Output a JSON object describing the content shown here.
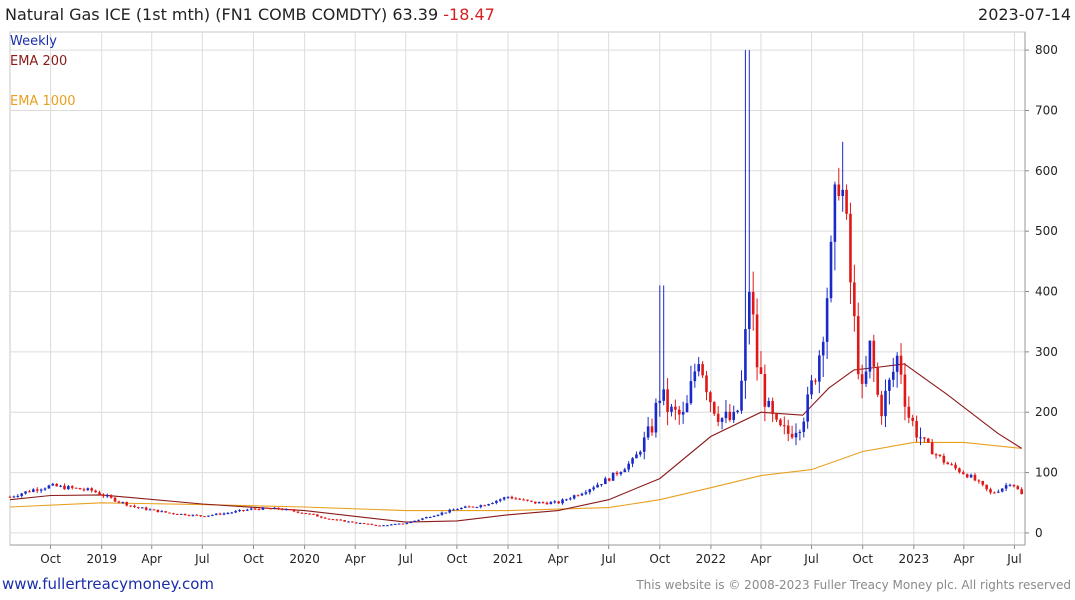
{
  "header": {
    "title": "Natural Gas ICE (1st mth) (FN1 COMB COMDTY) 63.39",
    "change": "-18.47",
    "date": "2023-07-14"
  },
  "footer": {
    "site": "www.fullertreacymoney.com",
    "copyright": "This website is © 2008-2023 Fuller Treacy Money plc. All rights reserved"
  },
  "chart_data": {
    "type": "candlestick",
    "grid": true,
    "colors": {
      "up": "#1a2ac8",
      "down": "#e01818",
      "ema200": "#8b1a1a",
      "ema1000": "#e8a020"
    },
    "legend": [
      {
        "label": "Weekly",
        "color": "#1a2ea8"
      },
      {
        "label": "EMA 200",
        "color": "#8b1a1a"
      },
      {
        "label": "",
        "color": "#e8a020"
      },
      {
        "label": "EMA 1000",
        "color": "#e8a020"
      }
    ],
    "y_axis": {
      "position": "right",
      "ticks": [
        0,
        100,
        200,
        300,
        400,
        500,
        600,
        700,
        800
      ],
      "range": [
        -20,
        830
      ]
    },
    "x_axis": {
      "ticks": [
        {
          "label": "Oct",
          "date": "2018-10-01"
        },
        {
          "label": "2019",
          "date": "2019-01-01"
        },
        {
          "label": "Apr",
          "date": "2019-04-01"
        },
        {
          "label": "Jul",
          "date": "2019-07-01"
        },
        {
          "label": "Oct",
          "date": "2019-10-01"
        },
        {
          "label": "2020",
          "date": "2020-01-01"
        },
        {
          "label": "Apr",
          "date": "2020-04-01"
        },
        {
          "label": "Jul",
          "date": "2020-07-01"
        },
        {
          "label": "Oct",
          "date": "2020-10-01"
        },
        {
          "label": "2021",
          "date": "2021-01-01"
        },
        {
          "label": "Apr",
          "date": "2021-04-01"
        },
        {
          "label": "Jul",
          "date": "2021-07-01"
        },
        {
          "label": "Oct",
          "date": "2021-10-01"
        },
        {
          "label": "2022",
          "date": "2022-01-01"
        },
        {
          "label": "Apr",
          "date": "2022-04-01"
        },
        {
          "label": "Jul",
          "date": "2022-07-01"
        },
        {
          "label": "Oct",
          "date": "2022-10-01"
        },
        {
          "label": "2023",
          "date": "2023-01-01"
        },
        {
          "label": "Apr",
          "date": "2023-04-01"
        },
        {
          "label": "Jul",
          "date": "2023-07-01"
        }
      ],
      "range": [
        "2018-07-20",
        "2023-07-20"
      ]
    },
    "weekly_close": [
      {
        "date": "2018-07-20",
        "value": 60
      },
      {
        "date": "2018-09-01",
        "value": 72
      },
      {
        "date": "2018-10-01",
        "value": 78
      },
      {
        "date": "2018-11-10",
        "value": 74
      },
      {
        "date": "2018-12-15",
        "value": 70
      },
      {
        "date": "2019-01-15",
        "value": 58
      },
      {
        "date": "2019-03-01",
        "value": 43
      },
      {
        "date": "2019-05-01",
        "value": 33
      },
      {
        "date": "2019-07-01",
        "value": 28
      },
      {
        "date": "2019-08-15",
        "value": 33
      },
      {
        "date": "2019-10-01",
        "value": 40
      },
      {
        "date": "2019-11-15",
        "value": 40
      },
      {
        "date": "2020-01-01",
        "value": 33
      },
      {
        "date": "2020-02-15",
        "value": 23
      },
      {
        "date": "2020-04-01",
        "value": 17
      },
      {
        "date": "2020-05-15",
        "value": 12
      },
      {
        "date": "2020-07-01",
        "value": 16
      },
      {
        "date": "2020-08-15",
        "value": 28
      },
      {
        "date": "2020-10-01",
        "value": 40
      },
      {
        "date": "2020-11-15",
        "value": 46
      },
      {
        "date": "2021-01-01",
        "value": 60
      },
      {
        "date": "2021-02-15",
        "value": 50
      },
      {
        "date": "2021-04-01",
        "value": 50
      },
      {
        "date": "2021-05-15",
        "value": 68
      },
      {
        "date": "2021-07-01",
        "value": 90
      },
      {
        "date": "2021-08-15",
        "value": 120
      },
      {
        "date": "2021-09-15",
        "value": 170
      },
      {
        "date": "2021-10-01",
        "value": 230
      },
      {
        "date": "2021-10-20",
        "value": 200
      },
      {
        "date": "2021-11-15",
        "value": 190
      },
      {
        "date": "2021-12-10",
        "value": 300
      },
      {
        "date": "2022-01-01",
        "value": 220
      },
      {
        "date": "2022-01-20",
        "value": 190
      },
      {
        "date": "2022-02-15",
        "value": 185
      },
      {
        "date": "2022-03-01",
        "value": 270
      },
      {
        "date": "2022-03-10",
        "value": 420
      },
      {
        "date": "2022-03-25",
        "value": 280
      },
      {
        "date": "2022-04-15",
        "value": 200
      },
      {
        "date": "2022-05-01",
        "value": 170
      },
      {
        "date": "2022-05-20",
        "value": 165
      },
      {
        "date": "2022-06-10",
        "value": 185
      },
      {
        "date": "2022-06-25",
        "value": 215
      },
      {
        "date": "2022-07-15",
        "value": 300
      },
      {
        "date": "2022-08-05",
        "value": 450
      },
      {
        "date": "2022-08-20",
        "value": 620
      },
      {
        "date": "2022-09-01",
        "value": 500
      },
      {
        "date": "2022-09-15",
        "value": 350
      },
      {
        "date": "2022-10-01",
        "value": 220
      },
      {
        "date": "2022-10-15",
        "value": 310
      },
      {
        "date": "2022-11-01",
        "value": 200
      },
      {
        "date": "2022-11-20",
        "value": 250
      },
      {
        "date": "2022-12-05",
        "value": 300
      },
      {
        "date": "2022-12-20",
        "value": 200
      },
      {
        "date": "2023-01-05",
        "value": 170
      },
      {
        "date": "2023-01-20",
        "value": 150
      },
      {
        "date": "2023-02-10",
        "value": 130
      },
      {
        "date": "2023-03-01",
        "value": 115
      },
      {
        "date": "2023-03-20",
        "value": 105
      },
      {
        "date": "2023-04-10",
        "value": 95
      },
      {
        "date": "2023-05-01",
        "value": 80
      },
      {
        "date": "2023-05-20",
        "value": 65
      },
      {
        "date": "2023-06-10",
        "value": 75
      },
      {
        "date": "2023-06-25",
        "value": 85
      },
      {
        "date": "2023-07-14",
        "value": 63.39
      }
    ],
    "series": [
      {
        "name": "EMA 200",
        "values": [
          {
            "date": "2018-07-20",
            "value": 55
          },
          {
            "date": "2018-10-01",
            "value": 62
          },
          {
            "date": "2019-01-01",
            "value": 63
          },
          {
            "date": "2019-07-01",
            "value": 48
          },
          {
            "date": "2020-01-01",
            "value": 37
          },
          {
            "date": "2020-07-01",
            "value": 18
          },
          {
            "date": "2020-10-01",
            "value": 20
          },
          {
            "date": "2021-01-01",
            "value": 30
          },
          {
            "date": "2021-04-01",
            "value": 37
          },
          {
            "date": "2021-07-01",
            "value": 55
          },
          {
            "date": "2021-10-01",
            "value": 90
          },
          {
            "date": "2022-01-01",
            "value": 160
          },
          {
            "date": "2022-04-01",
            "value": 200
          },
          {
            "date": "2022-06-15",
            "value": 195
          },
          {
            "date": "2022-08-01",
            "value": 240
          },
          {
            "date": "2022-09-15",
            "value": 270
          },
          {
            "date": "2022-11-01",
            "value": 275
          },
          {
            "date": "2022-12-15",
            "value": 280
          },
          {
            "date": "2023-03-01",
            "value": 230
          },
          {
            "date": "2023-06-01",
            "value": 165
          },
          {
            "date": "2023-07-14",
            "value": 140
          }
        ]
      },
      {
        "name": "EMA 1000",
        "values": [
          {
            "date": "2018-07-20",
            "value": 43
          },
          {
            "date": "2019-01-01",
            "value": 50
          },
          {
            "date": "2019-07-01",
            "value": 47
          },
          {
            "date": "2020-01-01",
            "value": 43
          },
          {
            "date": "2020-07-01",
            "value": 37
          },
          {
            "date": "2021-01-01",
            "value": 37
          },
          {
            "date": "2021-07-01",
            "value": 42
          },
          {
            "date": "2021-10-01",
            "value": 55
          },
          {
            "date": "2022-01-01",
            "value": 75
          },
          {
            "date": "2022-04-01",
            "value": 95
          },
          {
            "date": "2022-07-01",
            "value": 105
          },
          {
            "date": "2022-10-01",
            "value": 135
          },
          {
            "date": "2023-01-01",
            "value": 150
          },
          {
            "date": "2023-04-01",
            "value": 150
          },
          {
            "date": "2023-07-14",
            "value": 140
          }
        ]
      }
    ],
    "spikes": [
      {
        "date": "2021-10-05",
        "high": 410
      },
      {
        "date": "2022-03-07",
        "high": 800
      },
      {
        "date": "2022-08-25",
        "high": 648
      }
    ]
  }
}
